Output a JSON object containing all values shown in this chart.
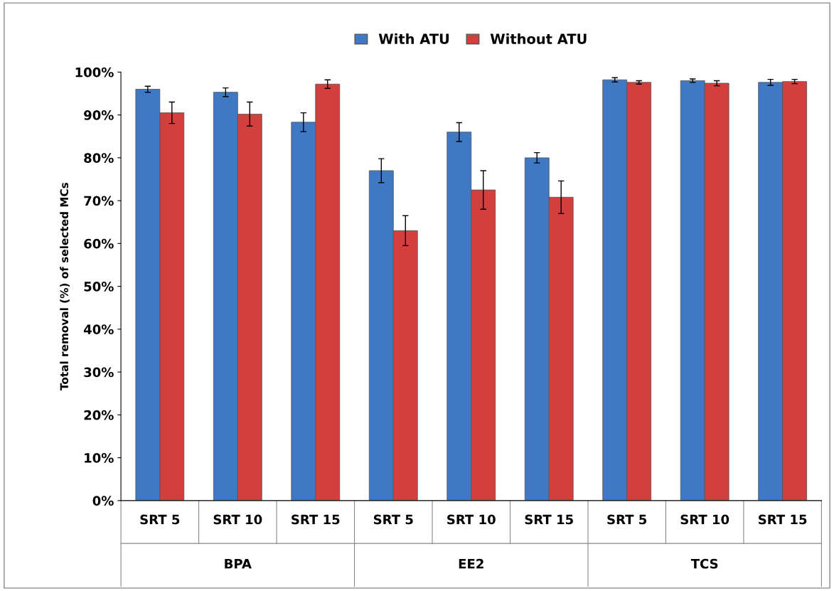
{
  "chart_data": {
    "type": "bar",
    "ylabel": "Total removal (%) of selected MCs",
    "categories": [
      "SRT 5",
      "SRT 10",
      "SRT 15",
      "SRT 5",
      "SRT 10",
      "SRT 15",
      "SRT 5",
      "SRT 10",
      "SRT 15"
    ],
    "annotations": [
      "BPA",
      "EE2",
      "TCS"
    ],
    "series": [
      {
        "name": "With ATU",
        "color": "#3f78c4",
        "values": [
          96,
          95.3,
          88.3,
          77,
          86,
          80,
          98.2,
          98,
          97.6
        ],
        "errors": [
          0.7,
          1,
          2.2,
          2.8,
          2.2,
          1.2,
          0.5,
          0.4,
          0.7
        ]
      },
      {
        "name": "Without ATU",
        "color": "#d23f3c",
        "values": [
          90.5,
          90.2,
          97.2,
          63,
          72.5,
          70.8,
          97.6,
          97.4,
          97.8
        ],
        "errors": [
          2.5,
          2.8,
          1,
          3.5,
          4.5,
          3.8,
          0.4,
          0.6,
          0.5
        ]
      }
    ],
    "ylim": [
      0,
      100
    ],
    "yticks": [
      {
        "value": 0,
        "label": "0%"
      },
      {
        "value": 10,
        "label": "10%"
      },
      {
        "value": 20,
        "label": "20%"
      },
      {
        "value": 30,
        "label": "30%"
      },
      {
        "value": 40,
        "label": "40%"
      },
      {
        "value": 50,
        "label": "50%"
      },
      {
        "value": 60,
        "label": "60%"
      },
      {
        "value": 70,
        "label": "70%"
      },
      {
        "value": 80,
        "label": "80%"
      },
      {
        "value": 90,
        "label": "90%"
      },
      {
        "value": 100,
        "label": "100%"
      }
    ],
    "grid": false,
    "legend": "top"
  }
}
